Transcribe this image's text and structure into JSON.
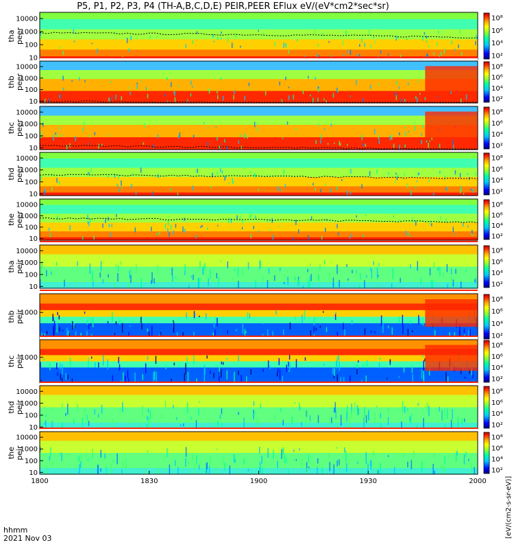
{
  "title": "P5, P1, P2, P3, P4 (TH-A,B,C,D,E) PEIR,PEER EFlux eV/(eV*cm2*sec*sr)",
  "time_axis": {
    "label": "hhmm",
    "date": "2021 Nov 03",
    "ticks": [
      "1800",
      "1830",
      "1900",
      "1930",
      "2000"
    ]
  },
  "colorbar_units": "[eV/(cm2-s-sr-eV)]",
  "chart_data": {
    "type": "heatmap",
    "x_range": [
      "18:00",
      "20:00"
    ],
    "colormap": [
      "#000080",
      "#0000ff",
      "#00c8ff",
      "#00ffa0",
      "#90ff30",
      "#ffff00",
      "#ffa000",
      "#ff2000",
      "#c00000"
    ],
    "panels": [
      {
        "id": "tha-peer",
        "label": [
          "tha",
          "peer"
        ],
        "y_ticks": [
          "10000",
          "1000",
          "100",
          "10"
        ],
        "ylim": [
          7,
          30000
        ],
        "log": true,
        "cbar_ticks": [
          "10⁸",
          "10⁶",
          "10⁴",
          "10²"
        ],
        "gap_top": false
      },
      {
        "id": "thb-peer",
        "label": [
          "thb",
          "peer"
        ],
        "y_ticks": [
          "10000",
          "1000",
          "100",
          "10"
        ],
        "ylim": [
          7,
          30000
        ],
        "log": true,
        "cbar_ticks": [
          "10⁸",
          "10⁶",
          "10⁴",
          "10²"
        ],
        "gap_top": true
      },
      {
        "id": "thc-peer",
        "label": [
          "thc",
          "peer"
        ],
        "y_ticks": [
          "10000",
          "1000",
          "100",
          "10"
        ],
        "ylim": [
          7,
          30000
        ],
        "log": true,
        "cbar_ticks": [
          "10⁸",
          "10⁶",
          "10⁴",
          "10²"
        ],
        "gap_top": false
      },
      {
        "id": "thd-peer",
        "label": [
          "thd",
          "peer"
        ],
        "y_ticks": [
          "10000",
          "1000",
          "100",
          "10"
        ],
        "ylim": [
          7,
          30000
        ],
        "log": true,
        "cbar_ticks": [
          "10⁸",
          "10⁶",
          "10⁴",
          "10²"
        ],
        "gap_top": false
      },
      {
        "id": "the-peer",
        "label": [
          "the",
          "peer"
        ],
        "y_ticks": [
          "10000",
          "1000",
          "100",
          "10"
        ],
        "ylim": [
          7,
          30000
        ],
        "log": true,
        "cbar_ticks": [
          "10⁸",
          "10⁶",
          "10⁴",
          "10²"
        ],
        "gap_top": false
      },
      {
        "id": "tha-peir",
        "label": [
          "tha",
          "peir"
        ],
        "y_ticks": [
          "10000",
          "1000",
          "100",
          "10"
        ],
        "ylim": [
          7,
          30000
        ],
        "log": true,
        "cbar_ticks": [
          "10⁸",
          "10⁶",
          "10⁴",
          "10²"
        ],
        "gap_top": true
      },
      {
        "id": "thb-peir",
        "label": [
          "thb",
          "peir"
        ],
        "y_ticks": [
          "1000"
        ],
        "ylim": [
          7,
          30000
        ],
        "log": true,
        "cbar_ticks": [
          "10⁸",
          "10⁶",
          "10⁴",
          "10²"
        ],
        "gap_top": true
      },
      {
        "id": "thc-peir",
        "label": [
          "thc",
          "peir"
        ],
        "y_ticks": [
          "1000"
        ],
        "ylim": [
          7,
          30000
        ],
        "log": true,
        "cbar_ticks": [
          "10⁸",
          "10⁶",
          "10⁴",
          "10²"
        ],
        "gap_top": true
      },
      {
        "id": "thd-peir",
        "label": [
          "thd",
          "peir"
        ],
        "y_ticks": [
          "10000",
          "1000",
          "100",
          "10"
        ],
        "ylim": [
          7,
          30000
        ],
        "log": true,
        "cbar_ticks": [
          "10⁸",
          "10⁶",
          "10⁴",
          "10²"
        ],
        "gap_top": true
      },
      {
        "id": "the-peir",
        "label": [
          "the",
          "peir"
        ],
        "y_ticks": [
          "10000",
          "1000",
          "100",
          "10"
        ],
        "ylim": [
          7,
          30000
        ],
        "log": true,
        "cbar_ticks": [
          "10⁸",
          "10⁶",
          "10⁴",
          "10²"
        ],
        "gap_top": true
      }
    ]
  }
}
